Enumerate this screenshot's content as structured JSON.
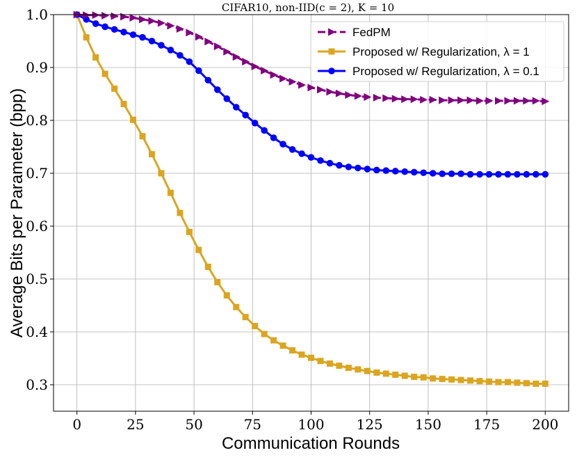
{
  "chart_data": {
    "type": "line",
    "title": "CIFAR10, non-IID(c = 2), K = 10",
    "xlabel": "Communication Rounds",
    "ylabel": "Average Bits per Parameter (bpp)",
    "xlim": [
      -10,
      210
    ],
    "ylim": [
      0.25,
      1.0
    ],
    "xticks": [
      0,
      25,
      50,
      75,
      100,
      125,
      150,
      175,
      200
    ],
    "yticks": [
      0.3,
      0.4,
      0.5,
      0.6,
      0.7,
      0.8,
      0.9,
      1.0
    ],
    "xtick_labels": [
      "0",
      "25",
      "50",
      "75",
      "100",
      "125",
      "150",
      "175",
      "200"
    ],
    "ytick_labels": [
      "0.3",
      "0.4",
      "0.5",
      "0.6",
      "0.7",
      "0.8",
      "0.9",
      "1.0"
    ],
    "grid": true,
    "legend_position": "top-right",
    "x": [
      0,
      4,
      8,
      12,
      16,
      20,
      24,
      28,
      32,
      36,
      40,
      44,
      48,
      52,
      56,
      60,
      64,
      68,
      72,
      76,
      80,
      84,
      88,
      92,
      96,
      100,
      104,
      108,
      112,
      116,
      120,
      124,
      128,
      132,
      136,
      140,
      144,
      148,
      152,
      156,
      160,
      164,
      168,
      172,
      176,
      180,
      184,
      188,
      192,
      196,
      200
    ],
    "series": [
      {
        "name": "FedPM",
        "color": "#800080",
        "marker": "triangle-right",
        "dashed": true,
        "values": [
          1.0,
          0.999,
          0.999,
          0.998,
          0.997,
          0.996,
          0.994,
          0.991,
          0.988,
          0.984,
          0.979,
          0.973,
          0.966,
          0.958,
          0.949,
          0.94,
          0.93,
          0.92,
          0.911,
          0.902,
          0.894,
          0.886,
          0.879,
          0.873,
          0.867,
          0.862,
          0.858,
          0.854,
          0.851,
          0.848,
          0.846,
          0.844,
          0.843,
          0.842,
          0.841,
          0.84,
          0.84,
          0.839,
          0.839,
          0.838,
          0.838,
          0.838,
          0.838,
          0.837,
          0.837,
          0.837,
          0.837,
          0.837,
          0.837,
          0.837,
          0.836
        ]
      },
      {
        "name": "Proposed w/ Regularization, λ = 1",
        "color": "#DAA520",
        "marker": "square",
        "dashed": false,
        "values": [
          1.0,
          0.957,
          0.919,
          0.888,
          0.86,
          0.831,
          0.801,
          0.77,
          0.736,
          0.7,
          0.663,
          0.625,
          0.589,
          0.555,
          0.523,
          0.494,
          0.469,
          0.447,
          0.428,
          0.411,
          0.396,
          0.384,
          0.374,
          0.365,
          0.357,
          0.351,
          0.345,
          0.34,
          0.336,
          0.332,
          0.329,
          0.326,
          0.323,
          0.321,
          0.319,
          0.317,
          0.315,
          0.314,
          0.312,
          0.311,
          0.31,
          0.309,
          0.308,
          0.307,
          0.306,
          0.305,
          0.305,
          0.304,
          0.303,
          0.302,
          0.302
        ]
      },
      {
        "name": "Proposed w/ Regularization, λ = 0.1",
        "color": "#0000FF",
        "marker": "circle",
        "dashed": false,
        "values": [
          1.0,
          0.991,
          0.983,
          0.977,
          0.972,
          0.967,
          0.962,
          0.957,
          0.95,
          0.942,
          0.933,
          0.923,
          0.911,
          0.894,
          0.876,
          0.858,
          0.841,
          0.825,
          0.81,
          0.795,
          0.781,
          0.767,
          0.755,
          0.745,
          0.737,
          0.73,
          0.724,
          0.719,
          0.715,
          0.712,
          0.71,
          0.708,
          0.706,
          0.705,
          0.704,
          0.703,
          0.702,
          0.701,
          0.7,
          0.699,
          0.699,
          0.699,
          0.698,
          0.698,
          0.698,
          0.698,
          0.698,
          0.698,
          0.698,
          0.698,
          0.698
        ]
      }
    ]
  }
}
